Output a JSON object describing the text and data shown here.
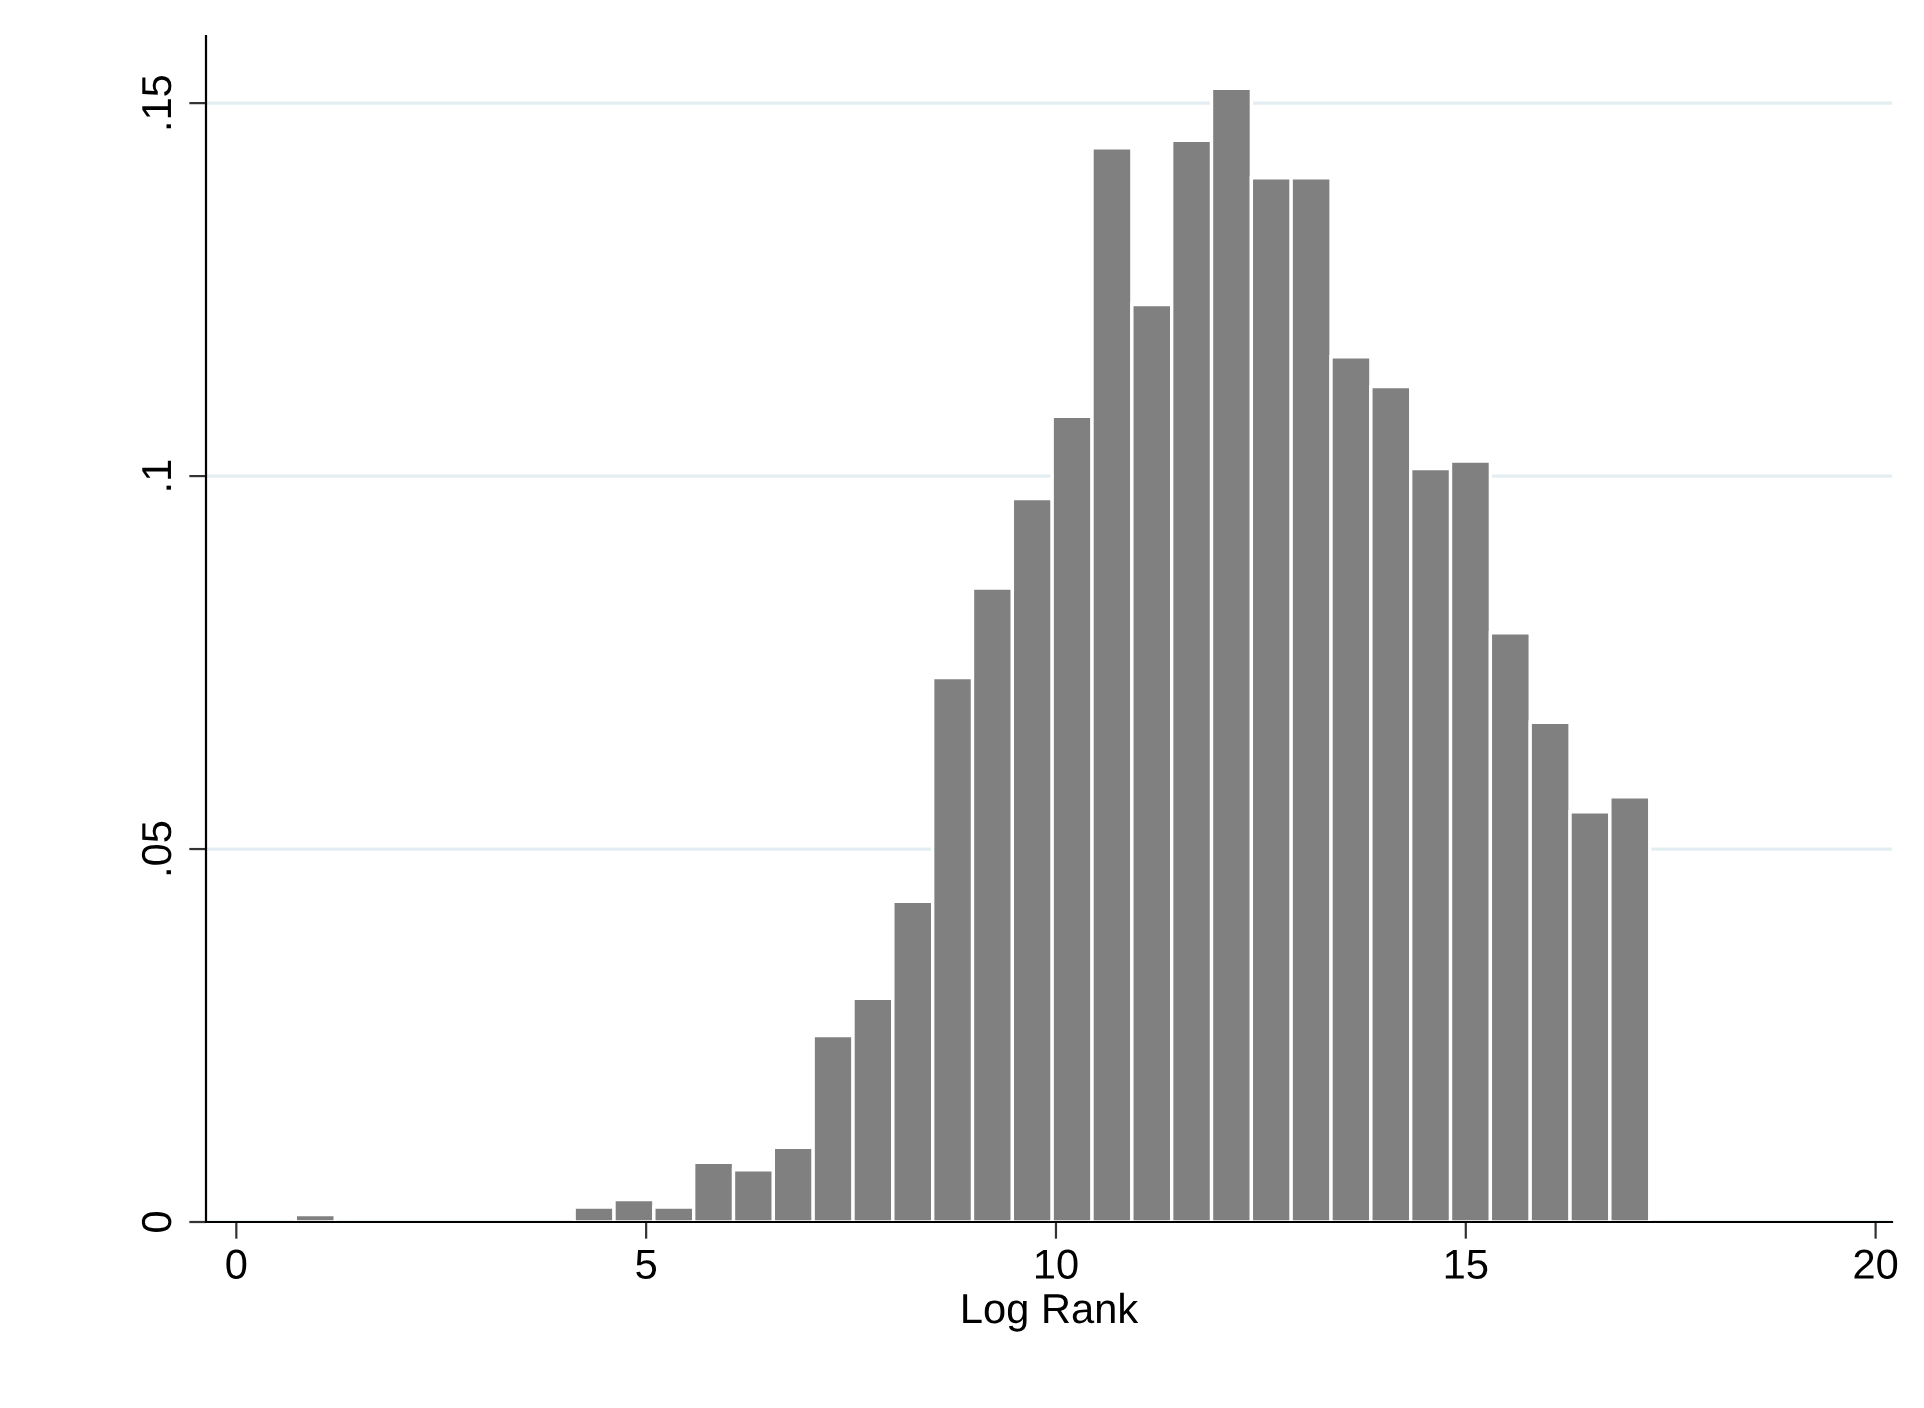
{
  "chart_data": {
    "type": "histogram",
    "xlabel": "Log Rank",
    "color": "#808080",
    "bins": [
      0.72,
      1.206,
      1.692,
      2.178,
      2.664,
      3.15,
      3.636,
      4.122,
      4.608,
      5.094,
      5.58,
      6.066,
      6.552,
      7.038,
      7.524,
      8.01,
      8.496,
      8.982,
      9.468,
      9.954,
      10.44,
      10.926,
      11.412,
      11.898,
      12.384,
      12.87,
      13.356,
      13.842,
      14.328,
      14.814,
      15.3,
      15.786,
      16.272,
      16.758,
      17.244
    ],
    "values": [
      0.001,
      0,
      0,
      0,
      0,
      0,
      0,
      0.002,
      0.003,
      0.002,
      0.008,
      0.007,
      0.01,
      0.025,
      0.03,
      0.043,
      0.073,
      0.085,
      0.097,
      0.108,
      0.144,
      0.123,
      0.145,
      0.152,
      0.14,
      0.14,
      0.116,
      0.112,
      0.101,
      0.102,
      0.079,
      0.067,
      0.055,
      0.057
    ],
    "xlim": [
      -0.37,
      20.2
    ],
    "xticks": [
      0,
      5,
      10,
      15,
      20
    ],
    "ylim": [
      0,
      0.159
    ],
    "yticks": [
      0,
      {
        "value": 0.05,
        "label": ".05"
      },
      {
        "value": 0.1,
        "label": ".1"
      },
      {
        "value": 0.15,
        "label": ".15"
      }
    ],
    "grid": "y"
  }
}
